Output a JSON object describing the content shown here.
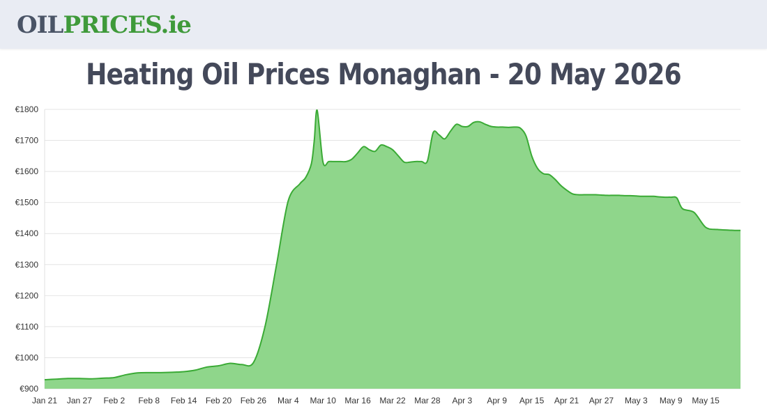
{
  "header": {
    "logo_part1": "OIL",
    "logo_part2": "PRICES",
    "logo_part3": ".ie"
  },
  "chart_data": {
    "type": "area",
    "title": "Heating Oil Prices Monaghan - 20 May 2026",
    "xlabel": "",
    "ylabel": "",
    "ylim": [
      900,
      1800
    ],
    "yticks": [
      "€900",
      "€1000",
      "€1100",
      "€1200",
      "€1300",
      "€1400",
      "€1500",
      "€1600",
      "€1700",
      "€1800"
    ],
    "xtick_labels": [
      "Jan 21",
      "Jan 27",
      "Feb 2",
      "Feb 8",
      "Feb 14",
      "Feb 20",
      "Feb 26",
      "Mar 4",
      "Mar 10",
      "Mar 16",
      "Mar 22",
      "Mar 28",
      "Apr 3",
      "Apr 9",
      "Apr 15",
      "Apr 21",
      "Apr 27",
      "May 3",
      "May 9",
      "May 15"
    ],
    "grid": true,
    "colors": {
      "line": "#3aaa35",
      "fill": "#8fd68b"
    },
    "series": [
      {
        "x": [
          0,
          2,
          4,
          6,
          8,
          10,
          12,
          14,
          16,
          18,
          20,
          22,
          24,
          26,
          28,
          30,
          32,
          34,
          36,
          38,
          40,
          42,
          44,
          45,
          46,
          46.5,
          47,
          48,
          49,
          50,
          51,
          52,
          53,
          54,
          55,
          56,
          57,
          58,
          59,
          60,
          61,
          62,
          63,
          64,
          65,
          66,
          67,
          68,
          69,
          70,
          71,
          72,
          73,
          74,
          75,
          76,
          77,
          78,
          79,
          80,
          81,
          82,
          83,
          84,
          85,
          86,
          87,
          88,
          89,
          90,
          91,
          92,
          93,
          94,
          95,
          96,
          97,
          98,
          99,
          100,
          101,
          102,
          103,
          104,
          105,
          106,
          107,
          108,
          109,
          110,
          112,
          114,
          116,
          118,
          119,
          120
        ],
        "values": [
          929,
          931,
          933,
          933,
          932,
          934,
          936,
          945,
          951,
          952,
          952,
          953,
          955,
          960,
          970,
          974,
          982,
          978,
          984,
          1100,
          1300,
          1505,
          1560,
          1580,
          1625,
          1700,
          1797,
          1630,
          1632,
          1632,
          1632,
          1632,
          1640,
          1660,
          1680,
          1670,
          1665,
          1685,
          1680,
          1670,
          1650,
          1630,
          1630,
          1632,
          1632,
          1633,
          1725,
          1718,
          1705,
          1730,
          1752,
          1745,
          1745,
          1758,
          1760,
          1752,
          1745,
          1743,
          1743,
          1742,
          1743,
          1740,
          1715,
          1650,
          1610,
          1593,
          1590,
          1575,
          1555,
          1540,
          1528,
          1525,
          1525,
          1525,
          1525,
          1524,
          1523,
          1523,
          1523,
          1522,
          1522,
          1521,
          1520,
          1520,
          1520,
          1518,
          1517,
          1517,
          1515,
          1480,
          1468,
          1420,
          1413,
          1411,
          1410,
          1410
        ]
      }
    ]
  }
}
